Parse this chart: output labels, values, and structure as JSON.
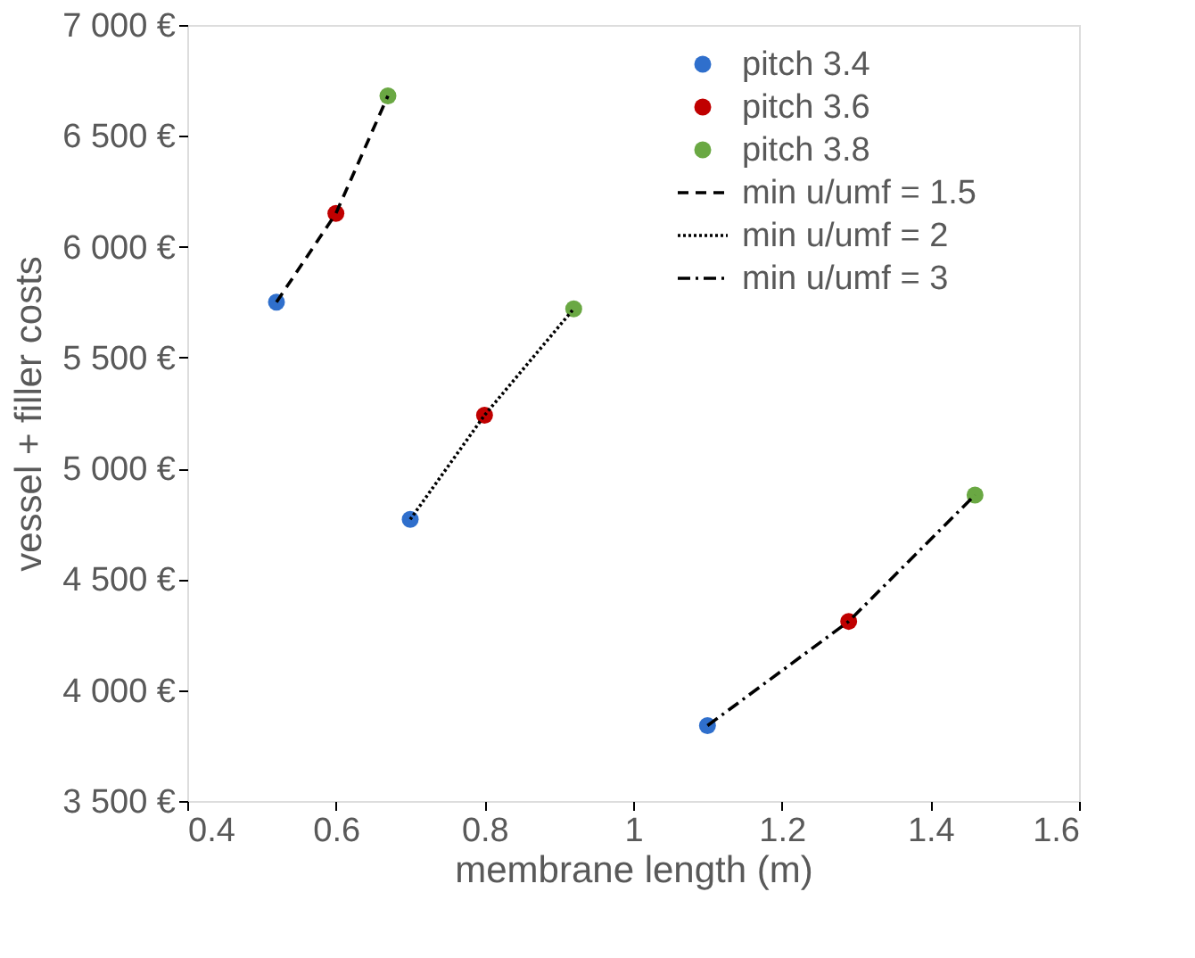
{
  "chart_data": {
    "type": "scatter",
    "xlabel": "membrane length (m)",
    "ylabel": "vessel + filler costs",
    "xlim": [
      0.4,
      1.6
    ],
    "xticks": [
      {
        "value": 0.4,
        "label": "0.4"
      },
      {
        "value": 0.6,
        "label": "0.6"
      },
      {
        "value": 0.8,
        "label": "0.8"
      },
      {
        "value": 1,
        "label": "1"
      },
      {
        "value": 1.2,
        "label": "1.2"
      },
      {
        "value": 1.4,
        "label": "1.4"
      },
      {
        "value": 1.6,
        "label": "1.6"
      }
    ],
    "ylim": [
      3500,
      7000
    ],
    "yticks": [
      {
        "value": 3500,
        "label": "3 500 €"
      },
      {
        "value": 4000,
        "label": "4 000 €"
      },
      {
        "value": 4500,
        "label": "4 500 €"
      },
      {
        "value": 5000,
        "label": "5 000 €"
      },
      {
        "value": 5500,
        "label": "5 500 €"
      },
      {
        "value": 6000,
        "label": "6 000 €"
      },
      {
        "value": 6500,
        "label": "6 500 €"
      },
      {
        "value": 7000,
        "label": "7 000 €"
      }
    ],
    "grid": false,
    "legend": "top right",
    "marker": "circle",
    "series": [
      {
        "name": "pitch 3.4",
        "color": "#2f6fcc",
        "x": [
          0.52,
          0.7,
          1.1
        ],
        "values": [
          5750,
          4770,
          3840
        ]
      },
      {
        "name": "pitch 3.6",
        "color": "#c00000",
        "x": [
          0.6,
          0.8,
          1.29
        ],
        "values": [
          6150,
          5240,
          4310
        ]
      },
      {
        "name": "pitch 3.8",
        "color": "#6aa843",
        "x": [
          0.67,
          0.92,
          1.46
        ],
        "values": [
          6680,
          5720,
          4880
        ]
      },
      {
        "name": "min u/umf = 1.5",
        "type": "line",
        "marker": "none",
        "line_style": "dashed",
        "color": "#000000",
        "x": [
          0.52,
          0.6,
          0.67
        ],
        "values": [
          5750,
          6150,
          6680
        ]
      },
      {
        "name": "min u/umf = 2",
        "type": "line",
        "marker": "none",
        "line_style": "dotted",
        "color": "#000000",
        "x": [
          0.7,
          0.8,
          0.92
        ],
        "values": [
          4770,
          5240,
          5720
        ]
      },
      {
        "name": "min u/umf = 3",
        "type": "line",
        "marker": "none",
        "line_style": "dashdot",
        "color": "#000000",
        "x": [
          1.1,
          1.29,
          1.46
        ],
        "values": [
          3840,
          4310,
          4880
        ]
      }
    ]
  }
}
